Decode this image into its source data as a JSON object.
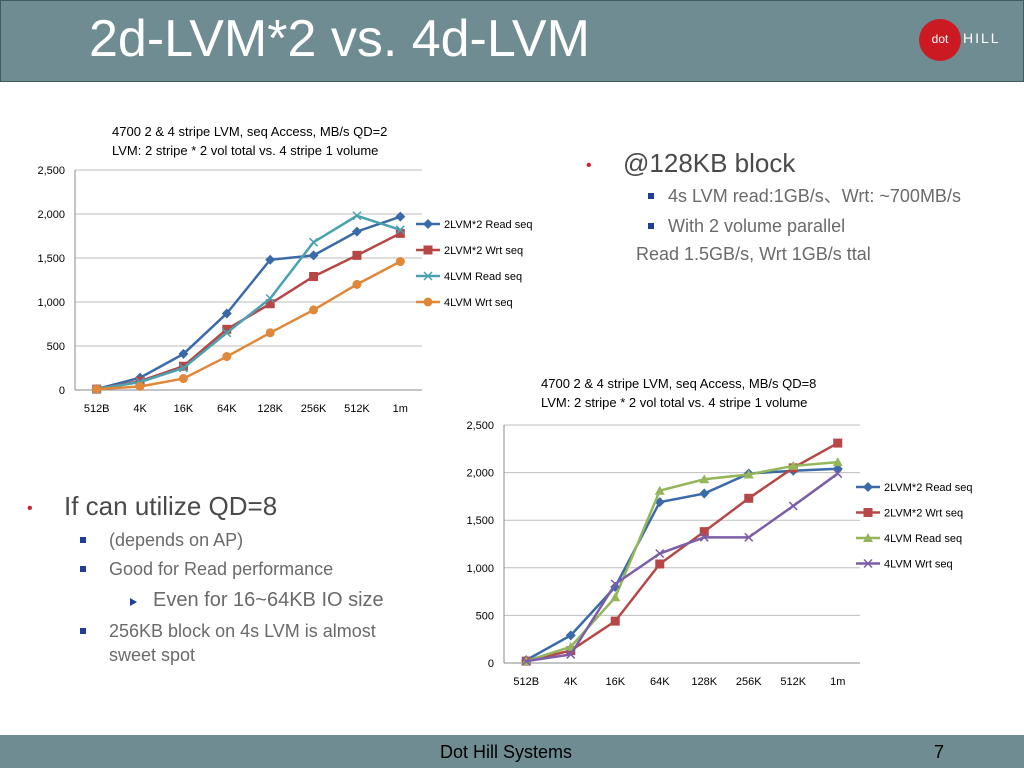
{
  "slide": {
    "title": "2d-LVM*2 vs. 4d-LVM",
    "logo": {
      "left": "dot",
      "right": "HILL"
    },
    "footer": "Dot Hill Systems",
    "page": "7"
  },
  "bullets_right": {
    "main": "@128KB block",
    "sub1": "4s LVM read:1GB/s、Wrt: ~700MB/s",
    "sub2": "With 2 volume parallel",
    "plain": "Read 1.5GB/s, Wrt 1GB/s ttal"
  },
  "bullets_left": {
    "main": "If can utilize QD=8",
    "sub1": "(depends on AP)",
    "sub2": "Good for Read performance",
    "sub3": "Even for 16~64KB IO size",
    "sub4_line1": "256KB block on 4s LVM is almost",
    "sub4_line2": "sweet spot"
  },
  "chart_data": [
    {
      "type": "line",
      "title_line1": "4700 2 & 4 stripe LVM, seq Access, MB/s  QD=2",
      "title_line2": "LVM: 2 stripe * 2 vol total vs.  4 stripe  1 volume",
      "categories": [
        "512B",
        "4K",
        "16K",
        "64K",
        "128K",
        "256K",
        "512K",
        "1m"
      ],
      "ylim": [
        0,
        2500
      ],
      "yticks": [
        "0",
        "500",
        "1,000",
        "1,500",
        "2,000",
        "2,500"
      ],
      "grid": true,
      "legend": "right",
      "series": [
        {
          "name": "2LVM*2 Read seq",
          "color": "#3a6aa8",
          "marker": "diamond",
          "values": [
            10,
            140,
            410,
            870,
            1480,
            1530,
            1800,
            1970
          ]
        },
        {
          "name": "2LVM*2 Wrt seq",
          "color": "#b64746",
          "marker": "square",
          "values": [
            10,
            100,
            270,
            690,
            980,
            1290,
            1530,
            1780
          ]
        },
        {
          "name": "4LVM Read seq",
          "color": "#4aa1b0",
          "marker": "x",
          "values": [
            10,
            90,
            250,
            650,
            1040,
            1680,
            1980,
            1820
          ]
        },
        {
          "name": "4LVM Wrt seq",
          "color": "#e0873a",
          "marker": "circle",
          "values": [
            10,
            40,
            130,
            380,
            650,
            910,
            1200,
            1460
          ]
        }
      ]
    },
    {
      "type": "line",
      "title_line1": "4700 2 & 4 stripe LVM, seq Access, MB/s  QD=8",
      "title_line2": "LVM: 2 stripe * 2 vol total vs.  4 stripe  1 volume",
      "categories": [
        "512B",
        "4K",
        "16K",
        "64K",
        "128K",
        "256K",
        "512K",
        "1m"
      ],
      "ylim": [
        0,
        2500
      ],
      "yticks": [
        "0",
        "500",
        "1,000",
        "1,500",
        "2,000",
        "2,500"
      ],
      "grid": true,
      "legend": "right",
      "series": [
        {
          "name": "2LVM*2 Read seq",
          "color": "#3a6aa8",
          "marker": "diamond",
          "values": [
            30,
            290,
            800,
            1690,
            1780,
            1990,
            2020,
            2040
          ]
        },
        {
          "name": "2LVM*2 Wrt seq",
          "color": "#b64746",
          "marker": "square",
          "values": [
            20,
            130,
            440,
            1040,
            1380,
            1730,
            2050,
            2310
          ]
        },
        {
          "name": "4LVM Read seq",
          "color": "#93b65b",
          "marker": "triangle",
          "values": [
            20,
            170,
            690,
            1810,
            1930,
            1980,
            2070,
            2110
          ]
        },
        {
          "name": "4LVM Wrt seq",
          "color": "#7b5ea7",
          "marker": "x",
          "values": [
            20,
            90,
            830,
            1150,
            1320,
            1320,
            1650,
            1990
          ]
        }
      ]
    }
  ]
}
